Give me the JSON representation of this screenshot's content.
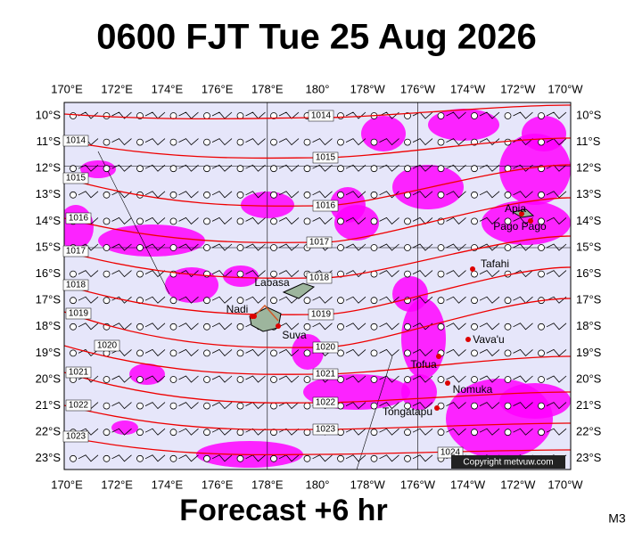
{
  "title": "0600 FJT Tue 25 Aug 2026",
  "footer": "Forecast +6 hr",
  "model": "M3",
  "copyright": "Copyright metvuw.com",
  "lon_labels": [
    "170°E",
    "172°E",
    "174°E",
    "176°E",
    "178°E",
    "180°",
    "178°W",
    "176°W",
    "174°W",
    "172°W",
    "170°W"
  ],
  "lat_labels": [
    "10°S",
    "11°S",
    "12°S",
    "13°S",
    "14°S",
    "15°S",
    "16°S",
    "17°S",
    "18°S",
    "19°S",
    "20°S",
    "21°S",
    "22°S",
    "23°S"
  ],
  "isobar_labels": [
    1014,
    1015,
    1016,
    1017,
    1018,
    1019,
    1020,
    1021,
    1022,
    1023,
    1024
  ],
  "places": [
    "Labasa",
    "Nadi",
    "Suva",
    "Apia",
    "Pago Pago",
    "Tafahi",
    "Vava'u",
    "Tofua",
    "Nomuka",
    "Tongatapu"
  ]
}
